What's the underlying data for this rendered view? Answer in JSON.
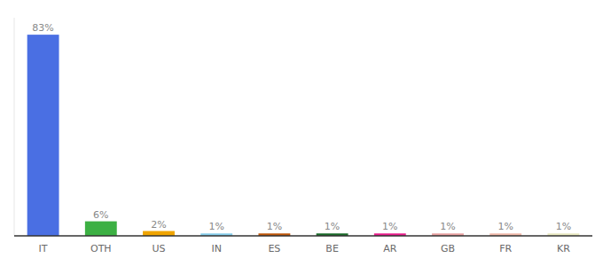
{
  "chart_data": {
    "type": "bar",
    "categories": [
      "IT",
      "OTH",
      "US",
      "IN",
      "ES",
      "BE",
      "AR",
      "GB",
      "FR",
      "KR"
    ],
    "values": [
      83,
      6,
      2,
      1,
      1,
      1,
      1,
      1,
      1,
      1
    ],
    "value_labels": [
      "83%",
      "6%",
      "2%",
      "1%",
      "1%",
      "1%",
      "1%",
      "1%",
      "1%",
      "1%"
    ],
    "colors": [
      "#4a6fe3",
      "#3cb043",
      "#f0a500",
      "#87ceeb",
      "#c0570a",
      "#1a6b2a",
      "#e91e8c",
      "#e8a0a0",
      "#f0b8a8",
      "#e8e8c0"
    ],
    "ylim": [
      0,
      90
    ],
    "data_labels": true,
    "grid": false,
    "tick_labels": "x"
  }
}
